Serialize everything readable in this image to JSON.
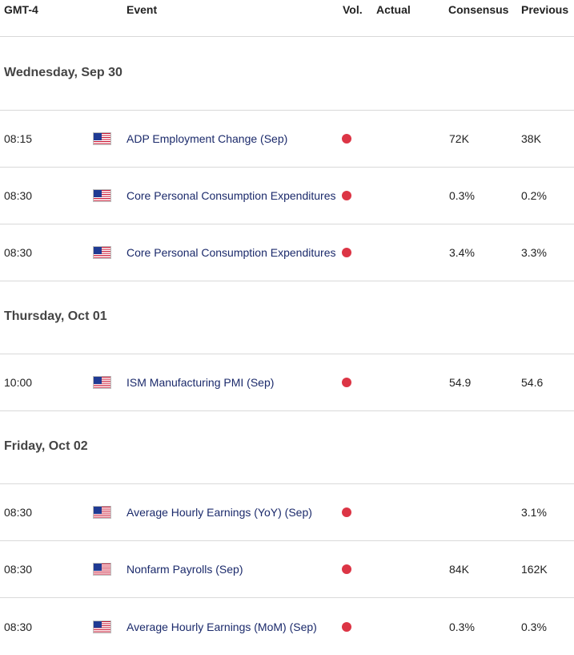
{
  "header": {
    "time": "GMT-4",
    "event": "Event",
    "vol": "Vol.",
    "actual": "Actual",
    "consensus": "Consensus",
    "previous": "Previous"
  },
  "colors": {
    "event_text": "#1b2a6b",
    "volatility_dot": "#dc3545",
    "divider": "#d9d9d9"
  },
  "days": [
    {
      "label": "Wednesday, Sep 30",
      "events": [
        {
          "time": "08:15",
          "flag": "us-flag-icon",
          "name": "ADP Employment Change (Sep)",
          "actual": "",
          "consensus": "72K",
          "previous": "38K"
        },
        {
          "time": "08:30",
          "flag": "us-flag-icon",
          "name": "Core Personal Consumption Expenditures",
          "actual": "",
          "consensus": "0.3%",
          "previous": "0.2%"
        },
        {
          "time": "08:30",
          "flag": "us-flag-icon",
          "name": "Core Personal Consumption Expenditures",
          "actual": "",
          "consensus": "3.4%",
          "previous": "3.3%"
        }
      ]
    },
    {
      "label": "Thursday, Oct 01",
      "events": [
        {
          "time": "10:00",
          "flag": "us-flag-icon",
          "name": "ISM Manufacturing PMI (Sep)",
          "actual": "",
          "consensus": "54.9",
          "previous": "54.6"
        }
      ]
    },
    {
      "label": "Friday, Oct 02",
      "events": [
        {
          "time": "08:30",
          "flag": "us-flag-icon",
          "name": "Average Hourly Earnings (YoY) (Sep)",
          "actual": "",
          "consensus": "",
          "previous": "3.1%"
        },
        {
          "time": "08:30",
          "flag": "us-flag-icon",
          "name": "Nonfarm Payrolls (Sep)",
          "actual": "",
          "consensus": "84K",
          "previous": "162K"
        },
        {
          "time": "08:30",
          "flag": "us-flag-icon",
          "name": "Average Hourly Earnings (MoM) (Sep)",
          "actual": "",
          "consensus": "0.3%",
          "previous": "0.3%"
        }
      ]
    }
  ]
}
